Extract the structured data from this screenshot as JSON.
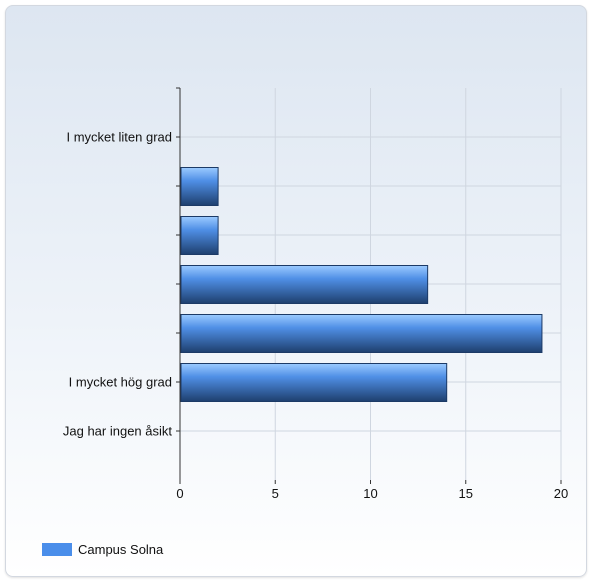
{
  "chart_data": {
    "type": "bar",
    "orientation": "horizontal",
    "categories": [
      "I mycket liten grad",
      "",
      "",
      "",
      "",
      "I mycket hög grad",
      "Jag har ingen åsikt"
    ],
    "series": [
      {
        "name": "Campus Solna",
        "values": [
          0,
          2,
          2,
          13,
          19,
          14,
          0
        ]
      }
    ],
    "xlim": [
      0,
      20
    ],
    "xticks": [
      0,
      5,
      10,
      15,
      20
    ],
    "xlabel": "",
    "ylabel": "",
    "title": "",
    "grid": true,
    "legend_position": "bottom-left"
  },
  "colors": {
    "bar": "#4a8eea",
    "bar_light": "#8fc2ff",
    "bar_dark": "#1c3f70"
  },
  "legend": {
    "label": "Campus Solna"
  }
}
